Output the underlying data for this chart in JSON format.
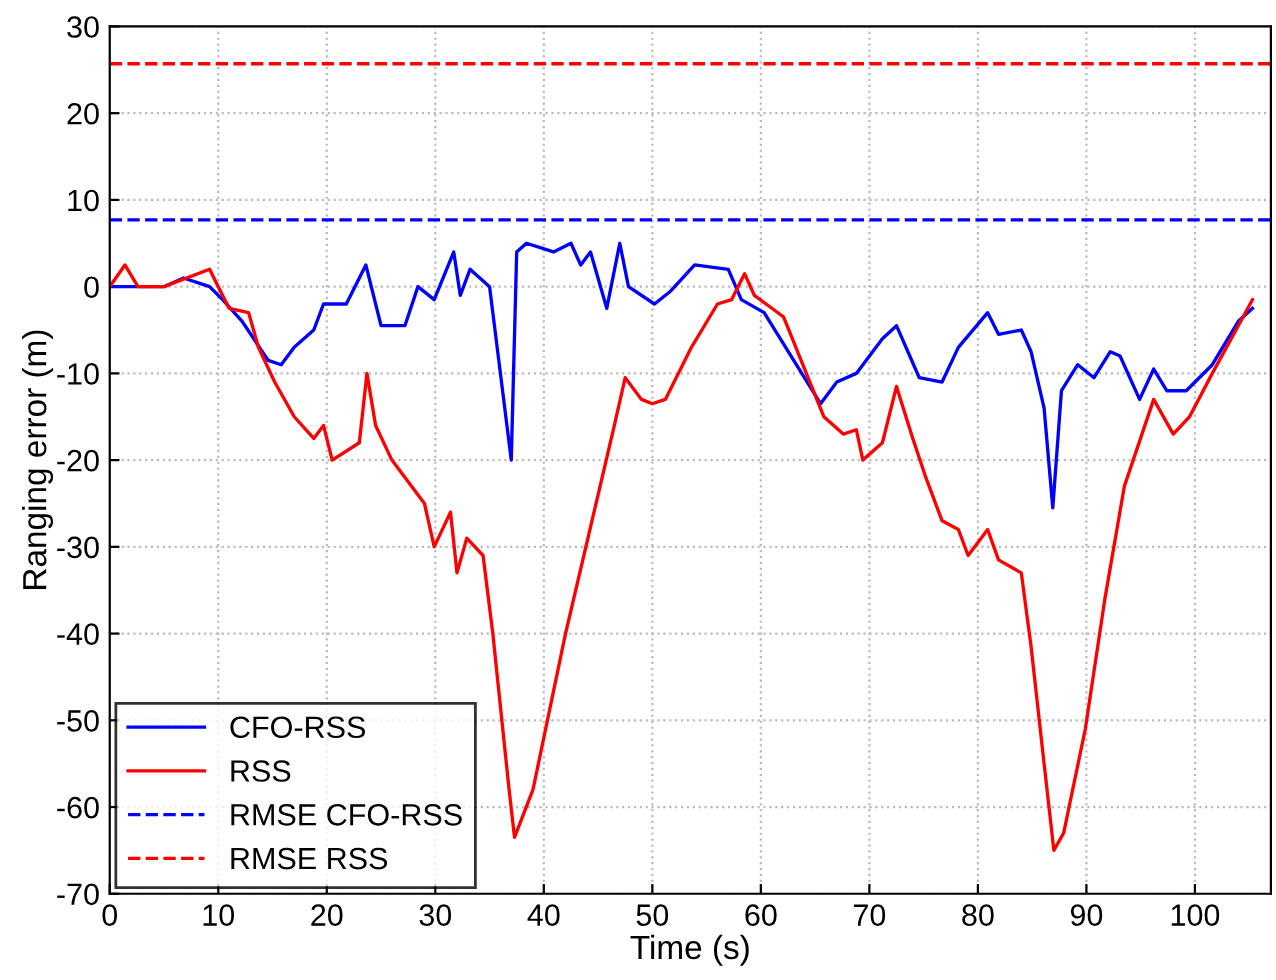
{
  "chart_data": {
    "type": "line",
    "xlabel": "Time (s)",
    "ylabel": "Ranging error (m)",
    "xlim": [
      0,
      107
    ],
    "xticks": [
      0,
      10,
      20,
      30,
      40,
      50,
      60,
      70,
      80,
      90,
      100
    ],
    "ylim": [
      -70,
      30
    ],
    "yticks": [
      -70,
      -60,
      -50,
      -40,
      -30,
      -20,
      -10,
      0,
      10,
      20,
      30
    ],
    "grid": true,
    "legend": "bottom left",
    "series": [
      {
        "name": "CFO-RSS",
        "color": "#0000ff",
        "line_style": "solid",
        "x": [
          0,
          1.4,
          5,
          6.8,
          9.2,
          10.4,
          12.2,
          14.6,
          15.8,
          17,
          18.8,
          19.7,
          21.8,
          23.6,
          25,
          27.2,
          28.4,
          29.9,
          31.7,
          32.3,
          33.2,
          35,
          37,
          37.5,
          38.4,
          40.9,
          42.5,
          43.4,
          44.3,
          45.8,
          47,
          47.8,
          50.2,
          51.7,
          53.9,
          57,
          58.2,
          60.3,
          65.5,
          67,
          68.8,
          71.2,
          72.5,
          74.6,
          76.7,
          78.2,
          80.9,
          81.9,
          84,
          84.9,
          86.1,
          86.9,
          87.7,
          89.2,
          90.7,
          92.2,
          93.1,
          94.9,
          96.2,
          97.4,
          99.2,
          101.6,
          104,
          105.3
        ],
        "values": [
          0,
          0,
          0,
          1,
          0,
          -1.5,
          -4,
          -8.5,
          -9,
          -7,
          -5,
          -2,
          -2,
          2.5,
          -4.5,
          -4.5,
          0,
          -1.5,
          4,
          -1,
          2,
          0,
          -20,
          4,
          5,
          4,
          5,
          2.5,
          4,
          -2.5,
          5,
          0,
          -2,
          -0.5,
          2.5,
          2,
          -1.5,
          -3,
          -13.5,
          -11,
          -10,
          -6,
          -4.5,
          -10.5,
          -11,
          -7,
          -3,
          -5.5,
          -5,
          -7.5,
          -14,
          -25.5,
          -12,
          -9,
          -10.5,
          -7.5,
          -8,
          -13,
          -9.5,
          -12,
          -12,
          -9,
          -4,
          -2.5
        ]
      },
      {
        "name": "RSS",
        "color": "#ff0000",
        "line_style": "solid",
        "x": [
          0,
          1.4,
          2.6,
          5,
          9.2,
          10,
          11,
          12.8,
          13.7,
          15.2,
          17,
          18.8,
          19.7,
          20.5,
          23,
          23.7,
          24.5,
          26,
          29,
          29.9,
          31.4,
          32,
          32.9,
          34.4,
          35.3,
          36.8,
          37.3,
          39,
          42,
          45,
          46.5,
          47.5,
          49,
          50,
          51.2,
          53.6,
          56,
          57.3,
          58.5,
          59.4,
          62.1,
          65.8,
          67.6,
          68.8,
          69.4,
          71.2,
          72.5,
          74,
          75.2,
          76.7,
          78.2,
          79.1,
          80.9,
          81.9,
          84,
          84.9,
          86.1,
          87,
          87.9,
          89.9,
          91.7,
          93.5,
          96.2,
          98,
          99.5,
          101.6,
          105.3
        ],
        "values": [
          0,
          2.5,
          0,
          0,
          2,
          0,
          -2.5,
          -3,
          -7,
          -11,
          -15,
          -17.5,
          -16,
          -20,
          -18,
          -10,
          -16,
          -20,
          -25,
          -30,
          -26,
          -33,
          -29,
          -31,
          -40,
          -58,
          -63.5,
          -58,
          -40,
          -24,
          -16,
          -10.5,
          -13,
          -13.5,
          -13,
          -7,
          -2,
          -1.5,
          1.5,
          -1,
          -3.5,
          -15,
          -17,
          -16.5,
          -20,
          -18,
          -11.5,
          -17.5,
          -22,
          -27,
          -28,
          -31,
          -28,
          -31.5,
          -33,
          -41.5,
          -55,
          -65,
          -63,
          -51,
          -36,
          -23,
          -13,
          -17,
          -15,
          -10,
          -1.5
        ]
      },
      {
        "name": "RMSE CFO-RSS",
        "color": "#0000ff",
        "line_style": "dashed",
        "x": [
          0,
          107
        ],
        "values": [
          7.7,
          7.7
        ]
      },
      {
        "name": "RMSE RSS",
        "color": "#ff0000",
        "line_style": "dashed",
        "x": [
          0,
          107
        ],
        "values": [
          25.7,
          25.7
        ]
      }
    ]
  }
}
